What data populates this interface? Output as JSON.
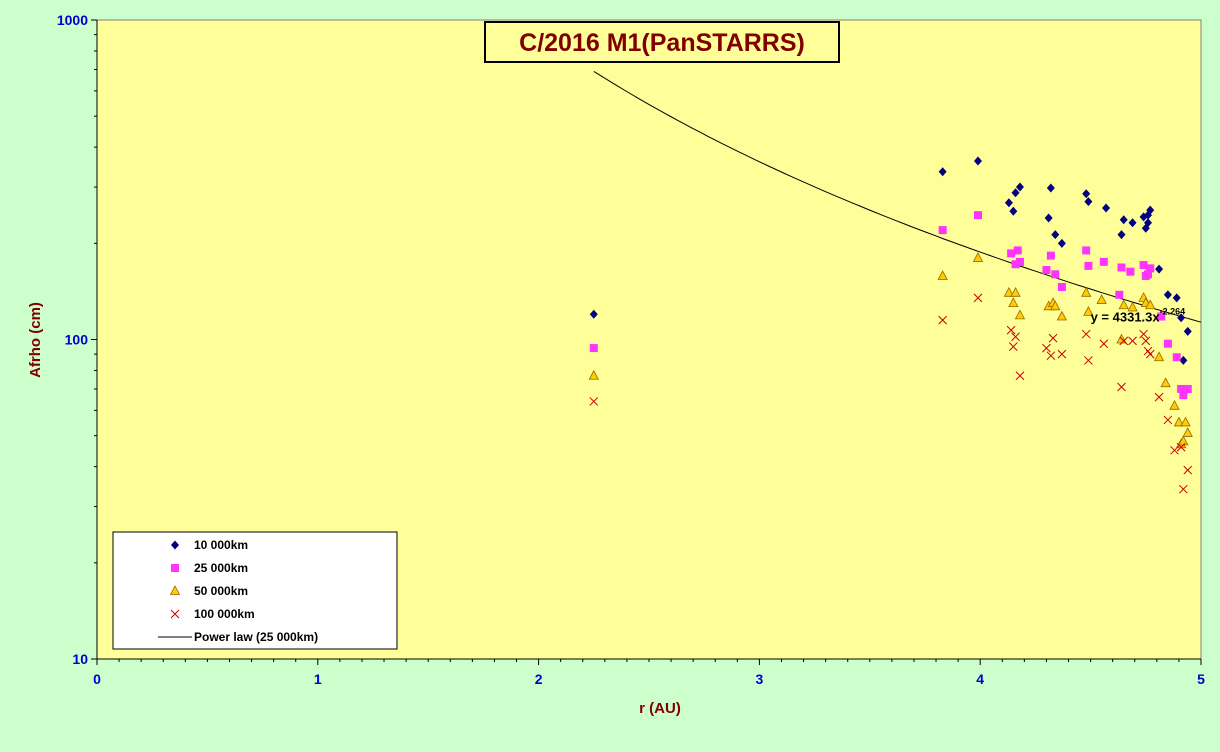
{
  "chart_data": {
    "type": "scatter",
    "title": "C/2016 M1(PanSTARRS)",
    "xlabel": "r (AU)",
    "ylabel": "Afrho (cm)",
    "xlim": [
      0,
      5
    ],
    "ylim": [
      10,
      1000
    ],
    "yscale": "log",
    "x_ticks": [
      "0",
      "1",
      "2",
      "3",
      "4",
      "5"
    ],
    "y_ticks": [
      "10",
      "100",
      "1000"
    ],
    "grid": false,
    "legend_position": "bottom-left",
    "series": [
      {
        "name": "10 000km",
        "marker": "diamond",
        "color": "#000080",
        "points": [
          [
            2.25,
            120
          ],
          [
            3.83,
            335
          ],
          [
            3.99,
            362
          ],
          [
            4.13,
            268
          ],
          [
            4.15,
            252
          ],
          [
            4.16,
            288
          ],
          [
            4.18,
            300
          ],
          [
            4.31,
            240
          ],
          [
            4.32,
            298
          ],
          [
            4.34,
            213
          ],
          [
            4.37,
            200
          ],
          [
            4.48,
            286
          ],
          [
            4.49,
            270
          ],
          [
            4.57,
            258
          ],
          [
            4.64,
            213
          ],
          [
            4.65,
            237
          ],
          [
            4.69,
            232
          ],
          [
            4.74,
            242
          ],
          [
            4.75,
            223
          ],
          [
            4.76,
            232
          ],
          [
            4.76,
            245
          ],
          [
            4.77,
            254
          ],
          [
            4.81,
            166
          ],
          [
            4.85,
            138
          ],
          [
            4.89,
            135
          ],
          [
            4.91,
            117
          ],
          [
            4.92,
            86
          ],
          [
            4.94,
            106
          ]
        ]
      },
      {
        "name": "25 000km",
        "marker": "square",
        "color": "#ff33ff",
        "points": [
          [
            2.25,
            94
          ],
          [
            3.83,
            220
          ],
          [
            3.99,
            245
          ],
          [
            4.14,
            186
          ],
          [
            4.16,
            172
          ],
          [
            4.17,
            190
          ],
          [
            4.18,
            175
          ],
          [
            4.3,
            165
          ],
          [
            4.32,
            183
          ],
          [
            4.34,
            160
          ],
          [
            4.37,
            146
          ],
          [
            4.48,
            190
          ],
          [
            4.49,
            170
          ],
          [
            4.56,
            175
          ],
          [
            4.63,
            138
          ],
          [
            4.64,
            168
          ],
          [
            4.68,
            163
          ],
          [
            4.74,
            171
          ],
          [
            4.75,
            158
          ],
          [
            4.76,
            160
          ],
          [
            4.77,
            167
          ],
          [
            4.82,
            118
          ],
          [
            4.85,
            97
          ],
          [
            4.89,
            88
          ],
          [
            4.91,
            70
          ],
          [
            4.92,
            67
          ],
          [
            4.94,
            70
          ]
        ]
      },
      {
        "name": "50 000km",
        "marker": "triangle",
        "color": "#ffcc00",
        "points": [
          [
            2.25,
            77
          ],
          [
            3.83,
            158
          ],
          [
            3.99,
            180
          ],
          [
            4.13,
            140
          ],
          [
            4.15,
            130
          ],
          [
            4.16,
            140
          ],
          [
            4.18,
            119
          ],
          [
            4.31,
            127
          ],
          [
            4.33,
            130
          ],
          [
            4.34,
            127
          ],
          [
            4.37,
            118
          ],
          [
            4.48,
            140
          ],
          [
            4.49,
            122
          ],
          [
            4.55,
            133
          ],
          [
            4.64,
            100
          ],
          [
            4.65,
            128
          ],
          [
            4.69,
            126
          ],
          [
            4.74,
            135
          ],
          [
            4.75,
            130
          ],
          [
            4.77,
            128
          ],
          [
            4.81,
            88
          ],
          [
            4.84,
            73
          ],
          [
            4.88,
            62
          ],
          [
            4.9,
            55
          ],
          [
            4.91,
            47
          ],
          [
            4.92,
            48
          ],
          [
            4.93,
            55
          ],
          [
            4.94,
            51
          ]
        ]
      },
      {
        "name": "100 000km",
        "marker": "x",
        "color": "#cc0000",
        "points": [
          [
            2.25,
            64
          ],
          [
            3.83,
            115
          ],
          [
            3.99,
            135
          ],
          [
            4.14,
            107
          ],
          [
            4.15,
            95
          ],
          [
            4.16,
            102
          ],
          [
            4.18,
            77
          ],
          [
            4.3,
            94
          ],
          [
            4.32,
            89
          ],
          [
            4.33,
            101
          ],
          [
            4.37,
            90
          ],
          [
            4.48,
            104
          ],
          [
            4.49,
            86
          ],
          [
            4.56,
            97
          ],
          [
            4.64,
            71
          ],
          [
            4.65,
            99
          ],
          [
            4.69,
            99
          ],
          [
            4.74,
            104
          ],
          [
            4.75,
            99
          ],
          [
            4.76,
            92
          ],
          [
            4.77,
            90
          ],
          [
            4.81,
            66
          ],
          [
            4.85,
            56
          ],
          [
            4.88,
            45
          ],
          [
            4.91,
            46
          ],
          [
            4.92,
            34
          ],
          [
            4.94,
            39
          ]
        ]
      },
      {
        "name": "Power law (25 000km)",
        "marker": "line",
        "color": "#000000",
        "fit": {
          "a": 4331.3,
          "b": -2.264,
          "x_from": 2.25,
          "x_to": 5.0
        }
      }
    ],
    "annotation": {
      "equation_text": "y = 4331.3x",
      "exponent_text": "-2.264",
      "x": 4.5,
      "y": 118
    }
  }
}
